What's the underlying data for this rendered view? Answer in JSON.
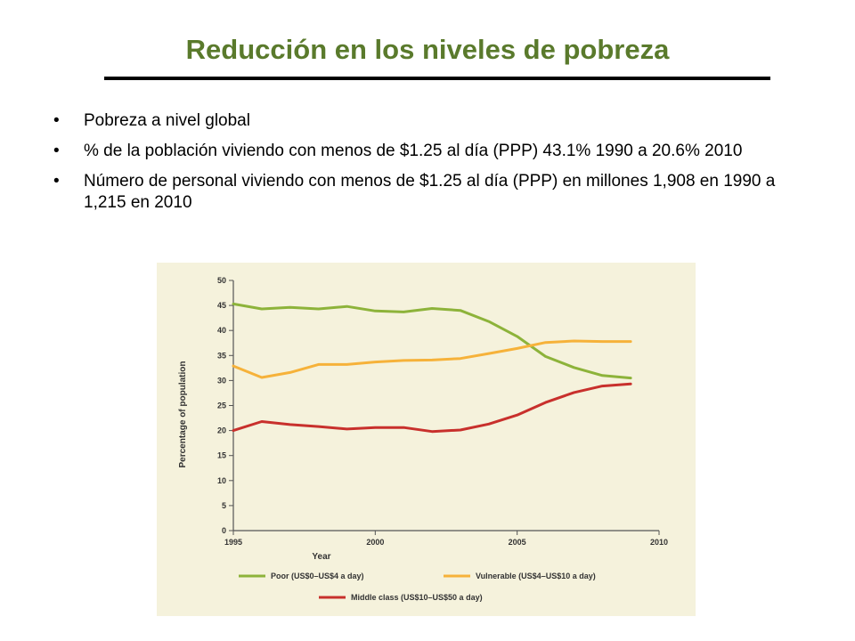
{
  "slide": {
    "title": "Reducción en los niveles de pobreza",
    "bullets": [
      "Pobreza a nivel global",
      "% de la población viviendo con menos de $1.25 al día (PPP) 43.1% 1990 a 20.6% 2010",
      "Número de personal viviendo con menos de $1.25 al día (PPP) en millones 1,908 en 1990 a 1,215 en 2010"
    ],
    "bullet_glyph": "•",
    "title_color": "#5a7a2c"
  },
  "chart_data": {
    "type": "line",
    "title": "",
    "xlabel": "Year",
    "ylabel": "Percentage of population",
    "xlim": [
      1995,
      2010
    ],
    "ylim": [
      0,
      50
    ],
    "x_ticks": [
      1995,
      2000,
      2005,
      2010
    ],
    "y_ticks": [
      0,
      5,
      10,
      15,
      20,
      25,
      30,
      35,
      40,
      45,
      50
    ],
    "grid": false,
    "legend_position": "bottom",
    "background": "#f5f2dc",
    "series": [
      {
        "name": "Poor (US$0–US$4 a day)",
        "color": "#8db33a",
        "points": [
          [
            1995,
            45.3
          ],
          [
            1996,
            44.3
          ],
          [
            1997,
            44.6
          ],
          [
            1998,
            44.3
          ],
          [
            1999,
            44.8
          ],
          [
            2000,
            43.9
          ],
          [
            2001,
            43.7
          ],
          [
            2002,
            44.4
          ],
          [
            2003,
            44.0
          ],
          [
            2004,
            41.8
          ],
          [
            2005,
            38.8
          ],
          [
            2006,
            34.8
          ],
          [
            2007,
            32.6
          ],
          [
            2008,
            31.0
          ],
          [
            2009,
            30.5
          ]
        ]
      },
      {
        "name": "Vulnerable (US$4–US$10 a day)",
        "color": "#f6b23a",
        "points": [
          [
            1995,
            32.9
          ],
          [
            1996,
            30.6
          ],
          [
            1997,
            31.6
          ],
          [
            1998,
            33.2
          ],
          [
            1999,
            33.2
          ],
          [
            2000,
            33.7
          ],
          [
            2001,
            34.0
          ],
          [
            2002,
            34.1
          ],
          [
            2003,
            34.4
          ],
          [
            2004,
            35.4
          ],
          [
            2005,
            36.4
          ],
          [
            2006,
            37.6
          ],
          [
            2007,
            37.9
          ],
          [
            2008,
            37.8
          ],
          [
            2009,
            37.8
          ]
        ]
      },
      {
        "name": "Middle class (US$10–US$50 a day)",
        "color": "#c8302c",
        "points": [
          [
            1995,
            20.0
          ],
          [
            1996,
            21.8
          ],
          [
            1997,
            21.2
          ],
          [
            1998,
            20.8
          ],
          [
            1999,
            20.3
          ],
          [
            2000,
            20.6
          ],
          [
            2001,
            20.6
          ],
          [
            2002,
            19.8
          ],
          [
            2003,
            20.1
          ],
          [
            2004,
            21.3
          ],
          [
            2005,
            23.1
          ],
          [
            2006,
            25.6
          ],
          [
            2007,
            27.6
          ],
          [
            2008,
            28.9
          ],
          [
            2009,
            29.3
          ]
        ]
      }
    ]
  }
}
